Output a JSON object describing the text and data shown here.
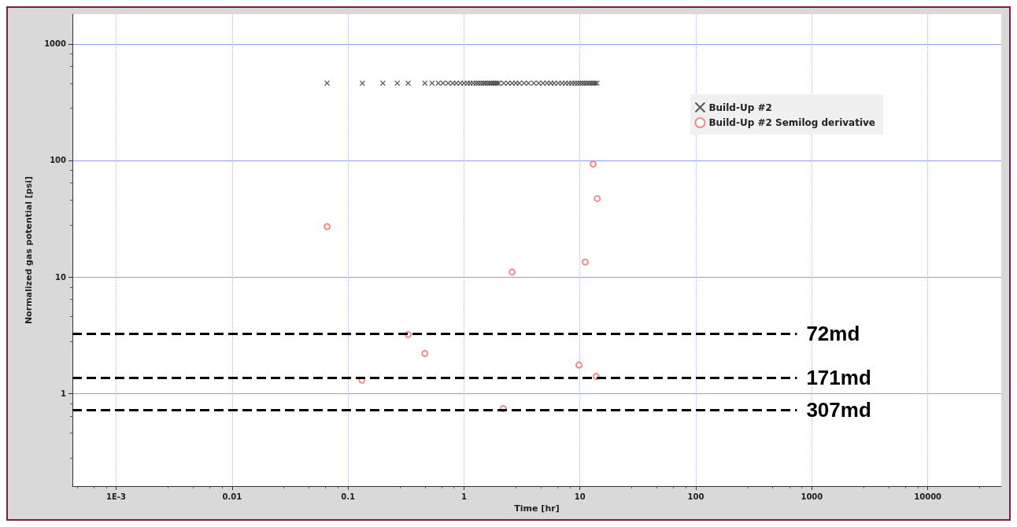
{
  "chart_data": {
    "type": "scatter",
    "xlabel": "Time [hr]",
    "ylabel": "Normalized gas potential [psi]",
    "log": "xy",
    "grid": true,
    "legend": "top right",
    "xlim": [
      0.00042,
      43000
    ],
    "xticks": [
      {
        "value": 0.001,
        "label": "1E-3"
      },
      0.01,
      0.1,
      1,
      10,
      100,
      1000,
      10000
    ],
    "ylim": [
      0.16,
      1800
    ],
    "yticks": [
      1,
      10,
      100,
      1000
    ],
    "series": [
      {
        "name": "Build-Up #2",
        "color": "#333333",
        "marker": "cross",
        "x": [
          0.066,
          0.133,
          0.2,
          0.266,
          0.33,
          0.46,
          0.53,
          0.6,
          0.66,
          0.73,
          0.8,
          0.86,
          0.93,
          1.0,
          1.07,
          1.13,
          1.2,
          1.27,
          1.33,
          1.4,
          1.47,
          1.53,
          1.6,
          1.67,
          1.73,
          1.8,
          1.87,
          1.93,
          2.0,
          2.2,
          2.4,
          2.6,
          2.8,
          3.0,
          3.3,
          3.6,
          4.0,
          4.4,
          4.8,
          5.2,
          5.6,
          6.0,
          6.5,
          7.0,
          7.5,
          8.0,
          8.5,
          9.0,
          9.5,
          10,
          10.5,
          11,
          11.5,
          12,
          12.5,
          13,
          13.5,
          14
        ],
        "values": [
          460,
          460,
          460,
          460,
          460,
          460,
          460,
          460,
          460,
          460,
          460,
          460,
          460,
          460,
          460,
          460,
          460,
          460,
          460,
          460,
          460,
          460,
          460,
          460,
          460,
          460,
          460,
          460,
          460,
          460,
          460,
          460,
          460,
          460,
          460,
          460,
          460,
          460,
          460,
          460,
          460,
          460,
          460,
          460,
          460,
          460,
          460,
          460,
          460,
          460,
          460,
          460,
          460,
          460,
          460,
          460,
          460,
          460
        ]
      },
      {
        "name": "Build-Up #2 Semilog derivative",
        "color": "#f07070",
        "marker": "circle",
        "x": [
          0.066,
          0.132,
          0.33,
          0.46,
          2.18,
          2.6,
          9.8,
          11.1,
          13.0,
          13.8,
          14.1
        ],
        "values": [
          27,
          1.3,
          3.2,
          2.2,
          0.74,
          11,
          1.75,
          13.4,
          93,
          1.4,
          47
        ]
      }
    ],
    "ref_lines": [
      {
        "axis": "y",
        "value": 3.26,
        "label": "72md",
        "color": "#000000",
        "line_style": "dashed"
      },
      {
        "axis": "y",
        "value": 1.36,
        "label": "171md",
        "color": "#000000",
        "line_style": "dashed"
      },
      {
        "axis": "y",
        "value": 0.72,
        "label": "307md",
        "color": "#000000",
        "line_style": "dashed"
      }
    ]
  }
}
